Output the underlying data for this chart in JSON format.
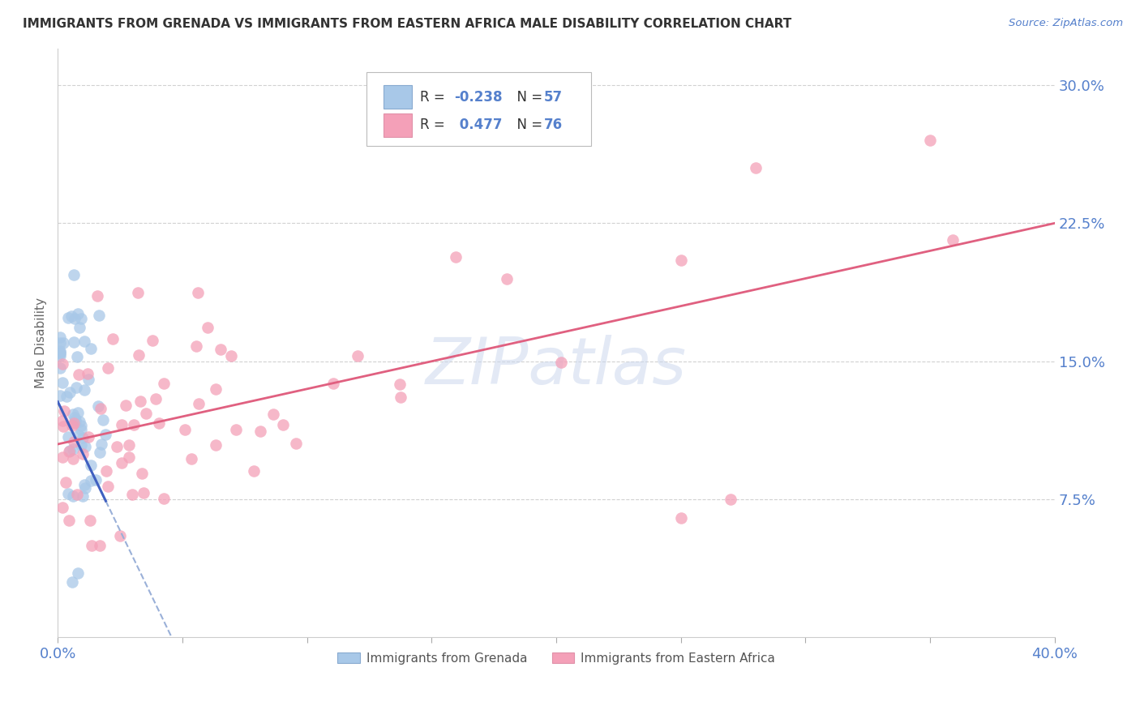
{
  "title": "IMMIGRANTS FROM GRENADA VS IMMIGRANTS FROM EASTERN AFRICA MALE DISABILITY CORRELATION CHART",
  "source": "Source: ZipAtlas.com",
  "ylabel": "Male Disability",
  "legend_label1": "Immigrants from Grenada",
  "legend_label2": "Immigrants from Eastern Africa",
  "R1": -0.238,
  "N1": 57,
  "R2": 0.477,
  "N2": 76,
  "xlim": [
    0.0,
    0.4
  ],
  "ylim": [
    0.0,
    0.32
  ],
  "yticks": [
    0.075,
    0.15,
    0.225,
    0.3
  ],
  "ytick_labels": [
    "7.5%",
    "15.0%",
    "22.5%",
    "30.0%"
  ],
  "xtick_labels_show": [
    "0.0%",
    "40.0%"
  ],
  "xtick_positions_show": [
    0.0,
    0.4
  ],
  "xtick_minor": [
    0.05,
    0.1,
    0.15,
    0.2,
    0.25,
    0.3,
    0.35
  ],
  "color1": "#a8c8e8",
  "color2": "#f4a0b8",
  "line_color1": "#4060c0",
  "line_color2": "#e06080",
  "line_color1_dashed": "#9ab0d8",
  "watermark_text": "ZIPatlas",
  "title_color": "#333333",
  "axis_label_color": "#5580cc",
  "tick_color": "#5580cc",
  "background_color": "#ffffff",
  "grid_color": "#cccccc"
}
